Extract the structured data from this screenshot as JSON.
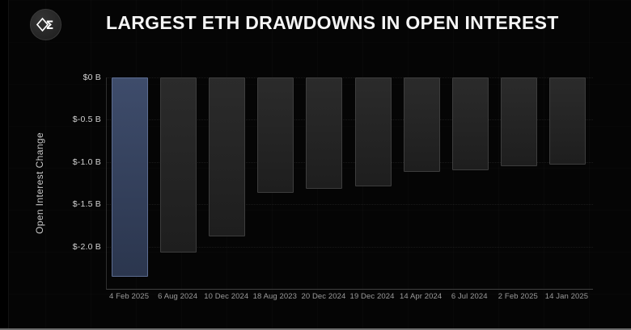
{
  "header": {
    "title": "LARGEST ETH DRAWDOWNS IN OPEN INTEREST"
  },
  "chart_data": {
    "type": "bar",
    "title": "LARGEST ETH DRAWDOWNS IN OPEN INTEREST",
    "xlabel": "",
    "ylabel": "Open Interest Change",
    "unit": "$ billions",
    "ylim": [
      -2.5,
      0
    ],
    "grid": "horizontal dotted",
    "legend": "none",
    "categories": [
      "4 Feb 2025",
      "6 Aug 2024",
      "10 Dec 2024",
      "18 Aug 2023",
      "20 Dec 2024",
      "19 Dec 2024",
      "14 Apr 2024",
      "6 Jul 2024",
      "2 Feb 2025",
      "14 Jan 2025"
    ],
    "values": [
      -2.36,
      -2.07,
      -1.88,
      -1.36,
      -1.32,
      -1.29,
      -1.12,
      -1.1,
      -1.05,
      -1.03
    ],
    "yticks": [
      {
        "label": "$0 B",
        "value": 0
      },
      {
        "label": "$-0.5 B",
        "value": -0.5
      },
      {
        "label": "$-1.0 B",
        "value": -1.0
      },
      {
        "label": "$-1.5 B",
        "value": -1.5
      },
      {
        "label": "$-2.0 B",
        "value": -2.0
      }
    ],
    "highlight_index": 0,
    "colors": {
      "background": "#050505",
      "bar_top": "#2b2b2b",
      "bar_bottom": "#1e1e1e",
      "bar_border": "#3d3d3d",
      "highlight_bar_top": "#3e4c6b",
      "highlight_bar_bottom": "#2b364e",
      "highlight_bar_border": "#5c6c90",
      "axis_line": "#3c3c3c",
      "gridline": "rgba(255,255,255,0.085)",
      "tick_label": "#d2d2d2",
      "x_label": "#9b9b9b",
      "title": "#f5f5f5"
    }
  }
}
